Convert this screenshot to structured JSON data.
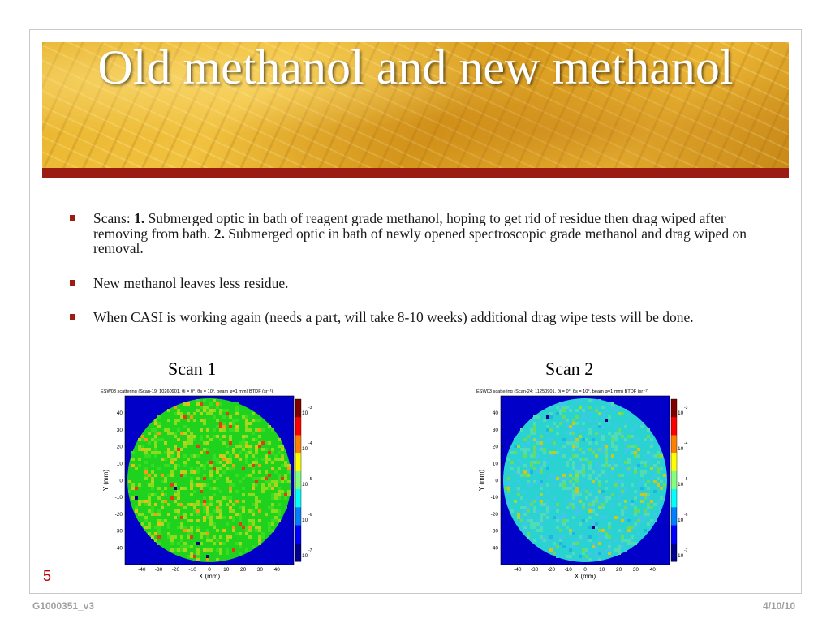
{
  "slide": {
    "title": "Old methanol and new methanol",
    "bullets": {
      "b1_prefix": "Scans: ",
      "b1_n1": "1.",
      "b1_t1": " Submerged optic in bath of reagent grade methanol, hoping to get rid of residue then drag wiped after removing from bath. ",
      "b1_n2": "2.",
      "b1_t2": " Submerged optic in bath of newly opened spectroscopic grade methanol and drag wiped on removal.",
      "b2": "New methanol leaves less residue.",
      "b3": "When CASI is working again (needs a part, will take 8-10 weeks) additional drag wipe tests will be done."
    },
    "scan1_label": "Scan 1",
    "scan2_label": "Scan 2",
    "page_number": "5",
    "footer_left": "G1000351_v3",
    "footer_right": "4/10/10",
    "colors": {
      "accent_bar": "#9b1c12",
      "banner": "#e7b22a",
      "page_number": "#c00000"
    }
  },
  "plots": [
    {
      "title": "ESW03 scattering  (Scan-19: 10260901, θi = 0°, θs = 10°, beam φ=1 mm) BTDF (sr⁻¹)",
      "xlabel": "X (mm)",
      "ylabel": "Y (mm)",
      "xticks": [
        "-40",
        "-30",
        "-20",
        "-10",
        "0",
        "10",
        "20",
        "30",
        "40"
      ],
      "yticks": [
        "40",
        "30",
        "20",
        "10",
        "0",
        "-10",
        "-20",
        "-30",
        "-40"
      ],
      "colorbar_ticks": [
        "-3",
        "-4",
        "-5",
        "-6",
        "-7"
      ],
      "colorbar_base": "10",
      "dominant": "green"
    },
    {
      "title": "ESW03 scattering  (Scan-24: 11250901, θi = 0°, θs = 10°, beam φ=1 mm) BTDF (sr⁻¹)",
      "xlabel": "X (mm)",
      "ylabel": "Y (mm)",
      "xticks": [
        "-40",
        "-30",
        "-20",
        "-10",
        "0",
        "10",
        "20",
        "30",
        "40"
      ],
      "yticks": [
        "40",
        "30",
        "20",
        "10",
        "0",
        "-10",
        "-20",
        "-30",
        "-40"
      ],
      "colorbar_ticks": [
        "-3",
        "-4",
        "-5",
        "-6",
        "-7"
      ],
      "colorbar_base": "10",
      "dominant": "cyan"
    }
  ]
}
